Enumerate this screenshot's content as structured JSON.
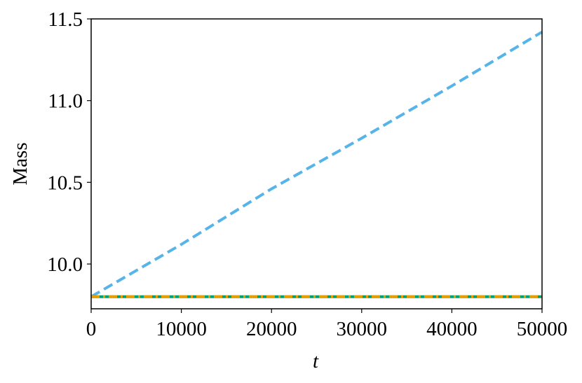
{
  "chart_data": {
    "type": "line",
    "x_label": "t",
    "y_label": "Mass",
    "x": [
      0,
      10000,
      20000,
      30000,
      40000,
      50000
    ],
    "series": [
      {
        "color": "#56b4e9",
        "style": "dashed",
        "values": [
          9.8,
          10.12,
          10.46,
          10.77,
          11.09,
          11.42
        ]
      },
      {
        "color": "#009e73",
        "style": "solid",
        "values": [
          9.8,
          9.8,
          9.8,
          9.8,
          9.8,
          9.8
        ]
      },
      {
        "color": "#e69f00",
        "style": "dashdot",
        "values": [
          9.8,
          9.8,
          9.8,
          9.8,
          9.8,
          9.8
        ]
      }
    ],
    "xlim": [
      0,
      50000
    ],
    "xticks": [
      0,
      10000,
      20000,
      30000,
      40000,
      50000
    ],
    "ylim": [
      9.726,
      11.5
    ],
    "yticks": [
      {
        "value": 10,
        "label": "10.0"
      },
      10.5,
      {
        "value": 11,
        "label": "11.0"
      },
      11.5
    ],
    "grid": false
  }
}
